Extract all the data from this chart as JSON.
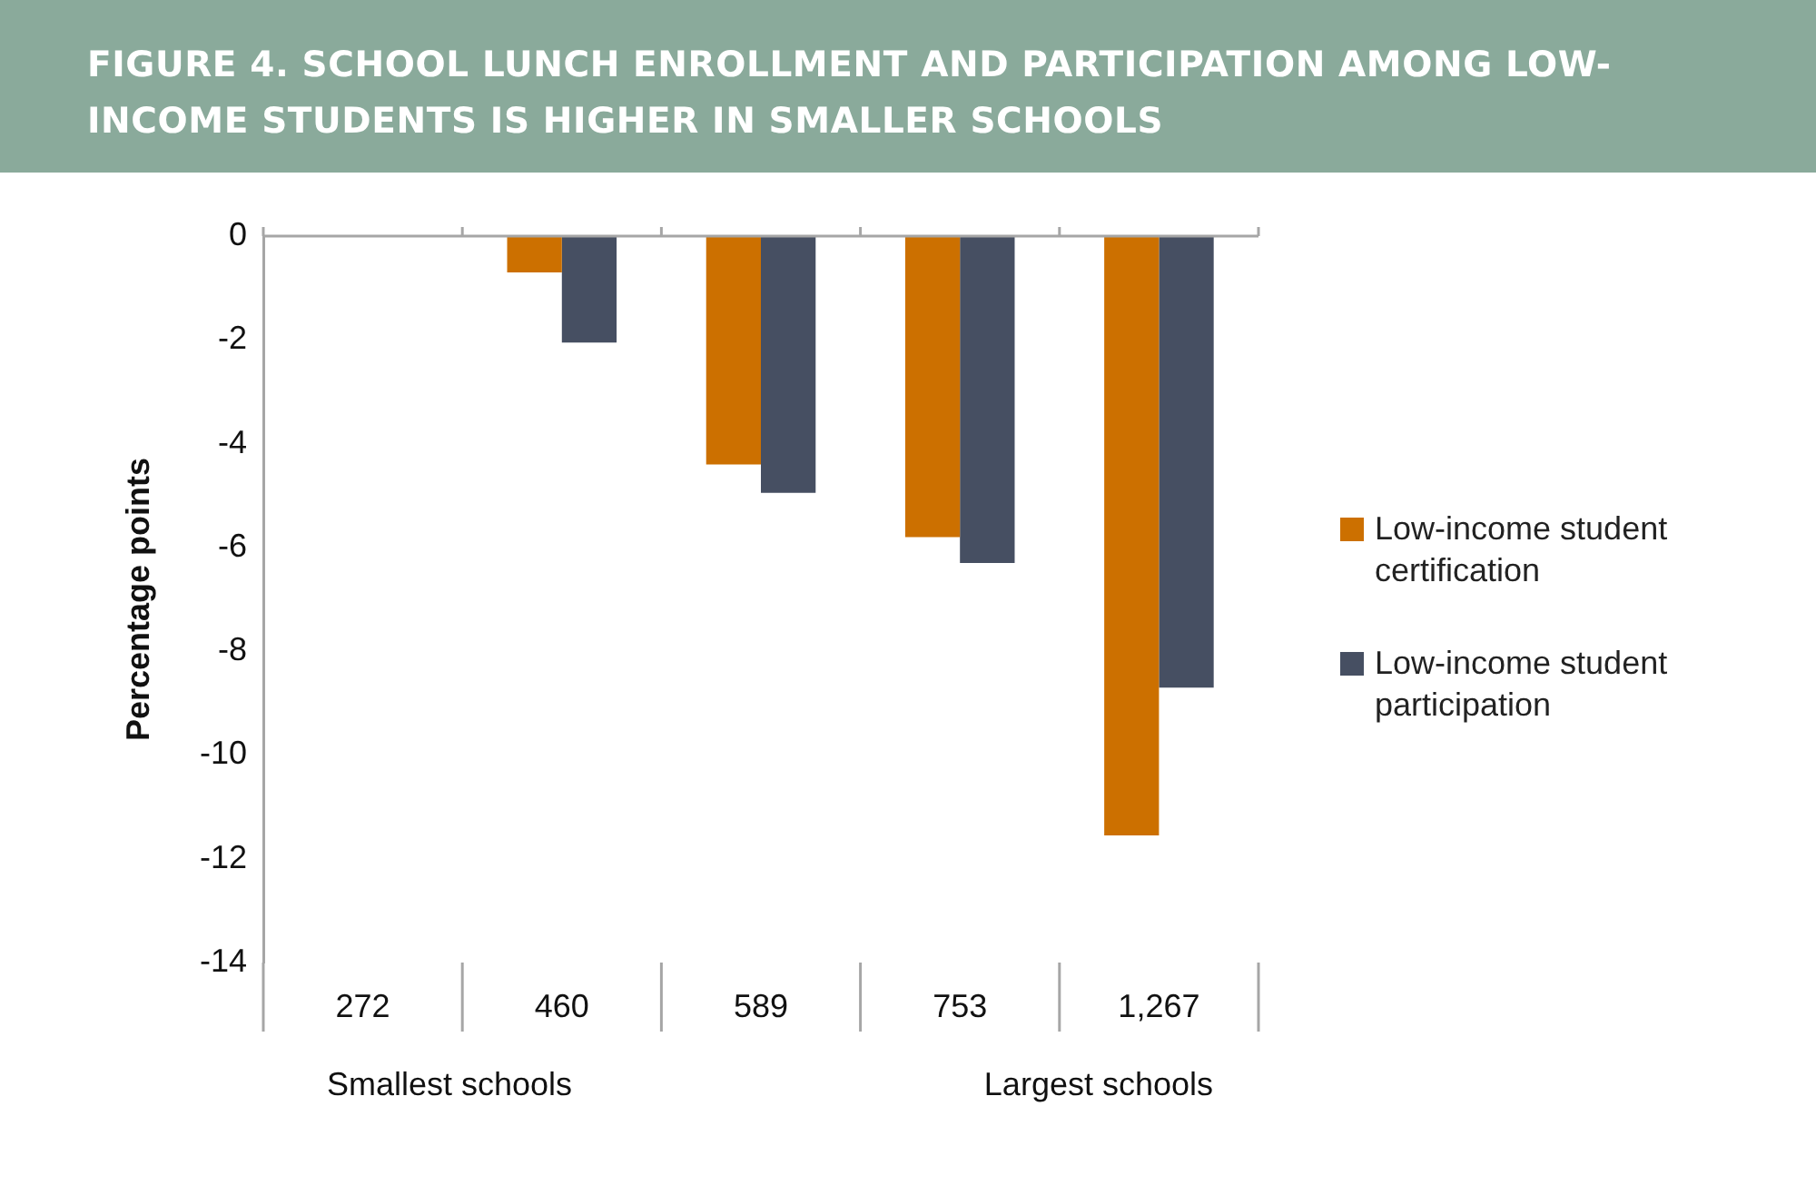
{
  "chart_data": {
    "type": "bar",
    "title": "FIGURE 4. SCHOOL LUNCH ENROLLMENT AND PARTICIPATION AMONG LOW-INCOME STUDENTS IS HIGHER IN SMALLER SCHOOLS",
    "ylabel": "Percentage points",
    "categories": [
      "272",
      "460",
      "589",
      "753",
      "1,267"
    ],
    "series": [
      {
        "name": "Low-income student certification",
        "color": "#cc7000",
        "values": [
          0,
          -0.7,
          -4.4,
          -5.8,
          -11.55
        ]
      },
      {
        "name": "Low-income student participation",
        "color": "#464f62",
        "values": [
          0,
          -2.05,
          -4.95,
          -6.3,
          -8.7
        ]
      }
    ],
    "ylim": [
      -14,
      0
    ],
    "yticks": [
      0,
      -2,
      -4,
      -6,
      -8,
      -10,
      -12,
      -14
    ],
    "grid": false,
    "legend": "right",
    "annotations": [
      "Smallest schools",
      "Largest schools"
    ]
  }
}
